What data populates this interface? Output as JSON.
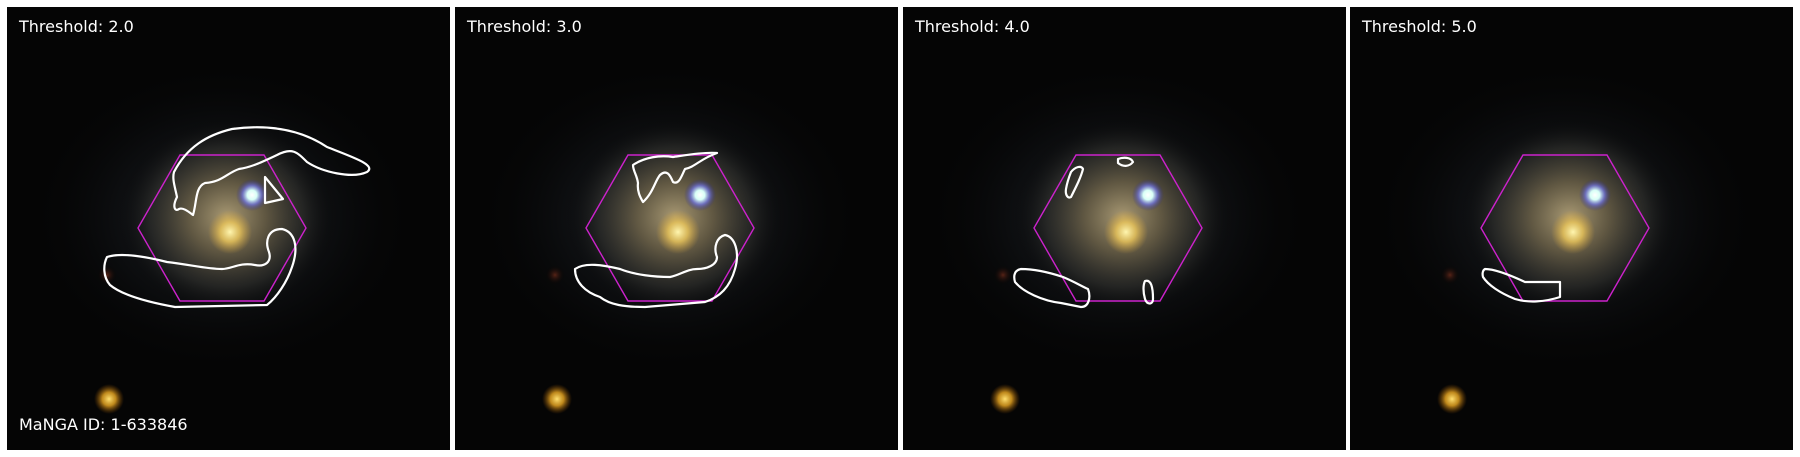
{
  "panels": [
    {
      "label": "Threshold: 2.0"
    },
    {
      "label": "Threshold: 3.0"
    },
    {
      "label": "Threshold: 4.0"
    },
    {
      "label": "Threshold: 5.0"
    }
  ],
  "manga_id_label": "MaNGA ID: 1-633846",
  "colors": {
    "background": "#000000",
    "contour": "#ffffff",
    "hexagon": "#cc22cc",
    "label_text": "#ffffff"
  }
}
